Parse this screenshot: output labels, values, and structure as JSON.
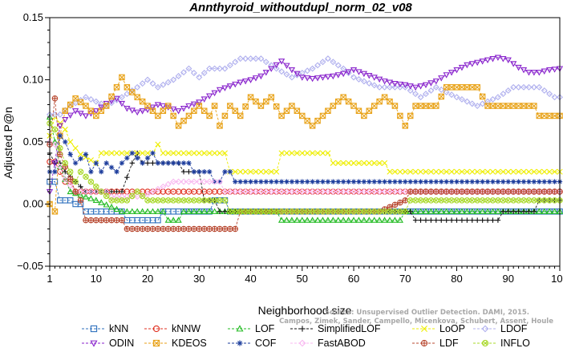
{
  "chart_data": {
    "type": "line",
    "title": "Annthyroid_withoutdupl_norm_02_v08",
    "xlabel": "Neighborhood size",
    "ylabel": "Adjusted P@n",
    "xlim": [
      1,
      100
    ],
    "ylim": [
      -0.05,
      0.15
    ],
    "xticks": [
      "1",
      "10",
      "20",
      "30",
      "40",
      "50",
      "60",
      "70",
      "80",
      "90",
      "100"
    ],
    "yticks": [
      "−0.05",
      "0.00",
      "0.05",
      "0.10",
      "0.15"
    ],
    "legend_position": "bottom",
    "grid": false,
    "watermark": [
      "Source: Unsupervised Outlier Detection. DAMI, 2015.",
      "Campos, Zimek, Sander, Campello, Micenkova, Schubert, Assent, Houle"
    ],
    "series": [
      {
        "name": "kNN",
        "color": "#2c6fbd",
        "marker": "square",
        "points": [
          [
            1,
            0.018
          ],
          [
            2,
            0.018
          ],
          [
            3,
            0.003
          ],
          [
            5,
            0.003
          ],
          [
            6,
            0.0
          ],
          [
            7,
            0.0
          ],
          [
            8,
            -0.006
          ],
          [
            15,
            -0.006
          ],
          [
            16,
            -0.013
          ],
          [
            22,
            -0.013
          ],
          [
            23,
            -0.006
          ],
          [
            32,
            -0.006
          ],
          [
            33,
            0.003
          ],
          [
            35,
            0.003
          ],
          [
            36,
            -0.006
          ],
          [
            100,
            -0.006
          ]
        ]
      },
      {
        "name": "kNNW",
        "color": "#e03020",
        "marker": "circle",
        "points": [
          [
            1,
            0.034
          ],
          [
            2,
            0.034
          ],
          [
            3,
            0.026
          ],
          [
            4,
            0.018
          ],
          [
            5,
            0.018
          ],
          [
            6,
            0.01
          ],
          [
            100,
            0.01
          ]
        ]
      },
      {
        "name": "LOF",
        "color": "#22bb22",
        "marker": "triangle",
        "points": [
          [
            1,
            0.07
          ],
          [
            2,
            0.05
          ],
          [
            3,
            0.03
          ],
          [
            4,
            0.02
          ],
          [
            5,
            0.01
          ],
          [
            10,
            0.003
          ],
          [
            15,
            -0.006
          ],
          [
            23,
            -0.006
          ],
          [
            24,
            -0.013
          ],
          [
            26,
            -0.013
          ],
          [
            27,
            -0.006
          ],
          [
            45,
            -0.006
          ],
          [
            46,
            -0.013
          ],
          [
            69,
            -0.013
          ],
          [
            70,
            -0.006
          ],
          [
            100,
            -0.006
          ]
        ]
      },
      {
        "name": "SimplifiedLOF",
        "color": "#111111",
        "marker": "plus",
        "points": [
          [
            1,
            0.041
          ],
          [
            2,
            0.033
          ],
          [
            3,
            0.033
          ],
          [
            4,
            0.026
          ],
          [
            6,
            0.018
          ],
          [
            8,
            0.01
          ],
          [
            15,
            0.01
          ],
          [
            17,
            0.033
          ],
          [
            18,
            0.041
          ],
          [
            19,
            0.033
          ],
          [
            26,
            0.033
          ],
          [
            27,
            0.026
          ],
          [
            30,
            0.026
          ],
          [
            31,
            0.003
          ],
          [
            33,
            0.003
          ],
          [
            34,
            -0.006
          ],
          [
            71,
            -0.006
          ],
          [
            72,
            -0.013
          ],
          [
            88,
            -0.013
          ],
          [
            89,
            -0.006
          ],
          [
            95,
            -0.006
          ],
          [
            96,
            0.003
          ],
          [
            100,
            0.003
          ]
        ]
      },
      {
        "name": "LoOP",
        "color": "#eeee00",
        "marker": "x",
        "points": [
          [
            1,
            0.055
          ],
          [
            2,
            0.07
          ],
          [
            3,
            0.065
          ],
          [
            4,
            0.06
          ],
          [
            5,
            0.05
          ],
          [
            7,
            0.04
          ],
          [
            10,
            0.033
          ],
          [
            11,
            0.041
          ],
          [
            21,
            0.041
          ],
          [
            22,
            0.048
          ],
          [
            23,
            0.041
          ],
          [
            35,
            0.041
          ],
          [
            36,
            0.026
          ],
          [
            45,
            0.026
          ],
          [
            46,
            0.041
          ],
          [
            55,
            0.041
          ],
          [
            56,
            0.033
          ],
          [
            66,
            0.033
          ],
          [
            67,
            0.026
          ],
          [
            100,
            0.026
          ]
        ]
      },
      {
        "name": "LDOF",
        "color": "#b0b0ee",
        "marker": "diamond",
        "points": [
          [
            1,
            0.072
          ],
          [
            3,
            0.072
          ],
          [
            5,
            0.079
          ],
          [
            8,
            0.086
          ],
          [
            12,
            0.079
          ],
          [
            15,
            0.086
          ],
          [
            18,
            0.094
          ],
          [
            20,
            0.1
          ],
          [
            22,
            0.094
          ],
          [
            25,
            0.1
          ],
          [
            28,
            0.109
          ],
          [
            30,
            0.102
          ],
          [
            32,
            0.109
          ],
          [
            35,
            0.109
          ],
          [
            38,
            0.117
          ],
          [
            42,
            0.117
          ],
          [
            45,
            0.109
          ],
          [
            48,
            0.102
          ],
          [
            52,
            0.109
          ],
          [
            55,
            0.117
          ],
          [
            58,
            0.109
          ],
          [
            60,
            0.102
          ],
          [
            65,
            0.094
          ],
          [
            70,
            0.094
          ],
          [
            73,
            0.086
          ],
          [
            76,
            0.094
          ],
          [
            80,
            0.086
          ],
          [
            84,
            0.079
          ],
          [
            88,
            0.086
          ],
          [
            91,
            0.094
          ],
          [
            96,
            0.094
          ],
          [
            99,
            0.086
          ],
          [
            100,
            0.086
          ]
        ]
      },
      {
        "name": "ODIN",
        "color": "#8822cc",
        "marker": "triangle-down",
        "points": [
          [
            1,
            0.01
          ],
          [
            2,
            0.033
          ],
          [
            3,
            0.063
          ],
          [
            4,
            0.068
          ],
          [
            6,
            0.075
          ],
          [
            8,
            0.071
          ],
          [
            10,
            0.075
          ],
          [
            12,
            0.081
          ],
          [
            14,
            0.085
          ],
          [
            16,
            0.077
          ],
          [
            18,
            0.074
          ],
          [
            20,
            0.076
          ],
          [
            22,
            0.08
          ],
          [
            24,
            0.078
          ],
          [
            26,
            0.075
          ],
          [
            28,
            0.079
          ],
          [
            30,
            0.082
          ],
          [
            32,
            0.087
          ],
          [
            34,
            0.092
          ],
          [
            36,
            0.095
          ],
          [
            38,
            0.098
          ],
          [
            40,
            0.1
          ],
          [
            42,
            0.103
          ],
          [
            44,
            0.109
          ],
          [
            46,
            0.115
          ],
          [
            48,
            0.108
          ],
          [
            50,
            0.102
          ],
          [
            52,
            0.101
          ],
          [
            54,
            0.102
          ],
          [
            56,
            0.103
          ],
          [
            58,
            0.105
          ],
          [
            60,
            0.108
          ],
          [
            62,
            0.105
          ],
          [
            64,
            0.102
          ],
          [
            66,
            0.099
          ],
          [
            68,
            0.097
          ],
          [
            70,
            0.096
          ],
          [
            72,
            0.094
          ],
          [
            74,
            0.096
          ],
          [
            76,
            0.099
          ],
          [
            78,
            0.104
          ],
          [
            80,
            0.108
          ],
          [
            82,
            0.112
          ],
          [
            84,
            0.114
          ],
          [
            86,
            0.116
          ],
          [
            88,
            0.118
          ],
          [
            90,
            0.116
          ],
          [
            92,
            0.11
          ],
          [
            94,
            0.106
          ],
          [
            96,
            0.106
          ],
          [
            98,
            0.108
          ],
          [
            100,
            0.109
          ]
        ]
      },
      {
        "name": "KDEOS",
        "color": "#e8a218",
        "marker": "square-x",
        "points": [
          [
            1,
            0.0
          ],
          [
            2,
            -0.006
          ],
          [
            3,
            0.055
          ],
          [
            4,
            0.075
          ],
          [
            6,
            0.085
          ],
          [
            8,
            0.079
          ],
          [
            10,
            0.071
          ],
          [
            12,
            0.079
          ],
          [
            14,
            0.094
          ],
          [
            15,
            0.102
          ],
          [
            16,
            0.094
          ],
          [
            18,
            0.086
          ],
          [
            20,
            0.079
          ],
          [
            22,
            0.071
          ],
          [
            24,
            0.079
          ],
          [
            26,
            0.063
          ],
          [
            28,
            0.071
          ],
          [
            30,
            0.079
          ],
          [
            32,
            0.071
          ],
          [
            33,
            0.079
          ],
          [
            34,
            0.063
          ],
          [
            36,
            0.079
          ],
          [
            38,
            0.071
          ],
          [
            40,
            0.086
          ],
          [
            42,
            0.079
          ],
          [
            44,
            0.086
          ],
          [
            46,
            0.071
          ],
          [
            48,
            0.079
          ],
          [
            50,
            0.071
          ],
          [
            52,
            0.063
          ],
          [
            54,
            0.071
          ],
          [
            56,
            0.079
          ],
          [
            58,
            0.086
          ],
          [
            60,
            0.079
          ],
          [
            62,
            0.071
          ],
          [
            64,
            0.079
          ],
          [
            66,
            0.086
          ],
          [
            68,
            0.079
          ],
          [
            70,
            0.063
          ],
          [
            72,
            0.079
          ],
          [
            76,
            0.079
          ],
          [
            78,
            0.094
          ],
          [
            84,
            0.094
          ],
          [
            86,
            0.079
          ],
          [
            93,
            0.079
          ],
          [
            95,
            0.079
          ],
          [
            96,
            0.071
          ],
          [
            100,
            0.071
          ]
        ]
      },
      {
        "name": "COF",
        "color": "#1c3c9c",
        "marker": "asterisk",
        "points": [
          [
            1,
            0.026
          ],
          [
            2,
            0.026
          ],
          [
            3,
            0.055
          ],
          [
            4,
            0.05
          ],
          [
            5,
            0.04
          ],
          [
            6,
            0.033
          ],
          [
            8,
            0.04
          ],
          [
            9,
            0.026
          ],
          [
            10,
            0.033
          ],
          [
            11,
            0.026
          ],
          [
            12,
            0.033
          ],
          [
            14,
            0.026
          ],
          [
            15,
            0.033
          ],
          [
            17,
            0.041
          ],
          [
            19,
            0.033
          ],
          [
            21,
            0.041
          ],
          [
            22,
            0.033
          ],
          [
            28,
            0.033
          ],
          [
            29,
            0.026
          ],
          [
            32,
            0.026
          ],
          [
            33,
            0.018
          ],
          [
            34,
            0.018
          ],
          [
            35,
            0.026
          ],
          [
            36,
            0.026
          ],
          [
            37,
            0.018
          ],
          [
            100,
            0.018
          ]
        ]
      },
      {
        "name": "FastABOD",
        "color": "#f8b8f0",
        "marker": "diamond",
        "points": [
          [
            1,
            0.05
          ],
          [
            2,
            0.048
          ],
          [
            3,
            0.03
          ],
          [
            4,
            0.02
          ],
          [
            6,
            0.01
          ],
          [
            12,
            0.01
          ],
          [
            13,
            0.006
          ],
          [
            19,
            0.006
          ],
          [
            21,
            0.01
          ],
          [
            25,
            0.018
          ],
          [
            26,
            0.018
          ],
          [
            30,
            0.018
          ],
          [
            32,
            0.018
          ],
          [
            34,
            0.018
          ],
          [
            35,
            0.01
          ],
          [
            60,
            0.01
          ],
          [
            70,
            0.01
          ],
          [
            100,
            0.01
          ]
        ]
      },
      {
        "name": "LDF",
        "color": "#b84830",
        "marker": "circle-plus",
        "points": [
          [
            1,
            0.048
          ],
          [
            2,
            0.085
          ],
          [
            3,
            0.04
          ],
          [
            4,
            0.03
          ],
          [
            5,
            0.02
          ],
          [
            6,
            0.01
          ],
          [
            7,
            0.003
          ],
          [
            8,
            -0.013
          ],
          [
            13,
            -0.013
          ],
          [
            15,
            -0.013
          ],
          [
            16,
            -0.02
          ],
          [
            37,
            -0.02
          ],
          [
            38,
            -0.006
          ],
          [
            60,
            -0.006
          ],
          [
            61,
            -0.006
          ],
          [
            65,
            -0.006
          ],
          [
            70,
            0.003
          ],
          [
            71,
            0.01
          ],
          [
            100,
            0.01
          ]
        ]
      },
      {
        "name": "INFLO",
        "color": "#a8d828",
        "marker": "circle-x",
        "points": [
          [
            1,
            0.065
          ],
          [
            2,
            0.06
          ],
          [
            3,
            0.045
          ],
          [
            4,
            0.033
          ],
          [
            5,
            0.026
          ],
          [
            6,
            0.018
          ],
          [
            7,
            0.026
          ],
          [
            9,
            0.018
          ],
          [
            11,
            0.01
          ],
          [
            13,
            0.003
          ],
          [
            16,
            0.003
          ],
          [
            18,
            0.01
          ],
          [
            20,
            0.003
          ],
          [
            32,
            0.003
          ],
          [
            35,
            0.003
          ],
          [
            36,
            -0.006
          ],
          [
            70,
            -0.006
          ],
          [
            71,
            0.003
          ],
          [
            100,
            0.003
          ]
        ]
      }
    ]
  }
}
